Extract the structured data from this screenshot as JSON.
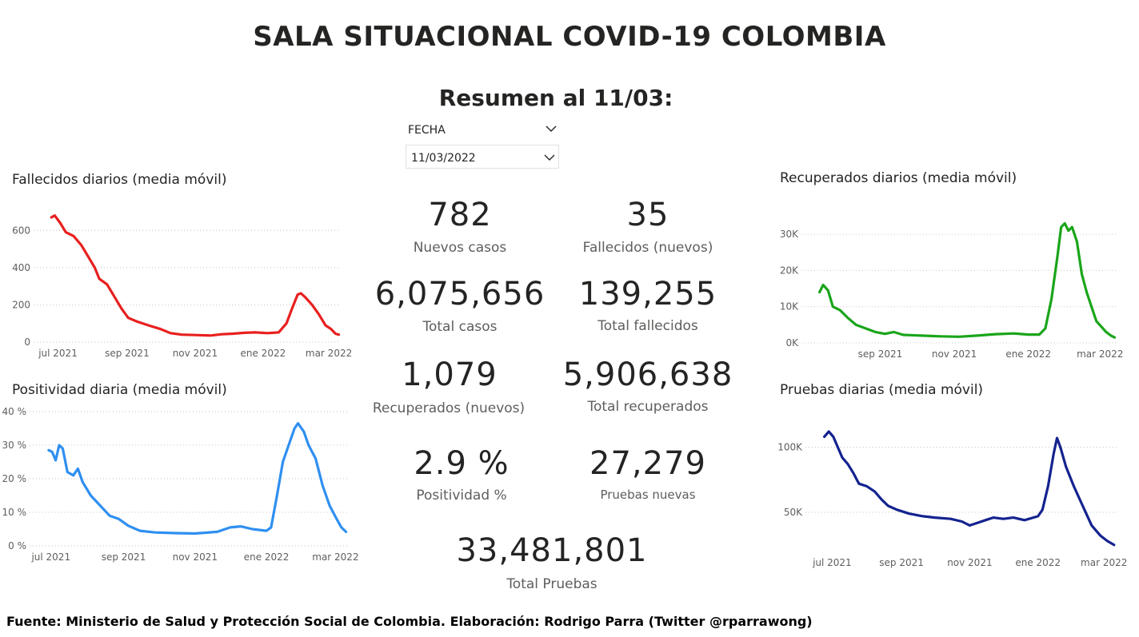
{
  "header": {
    "title": "SALA SITUACIONAL COVID-19 COLOMBIA",
    "subtitle": "Resumen al 11/03:"
  },
  "slicer": {
    "label": "FECHA",
    "value": "11/03/2022"
  },
  "kpis": {
    "nuevos_casos": {
      "value": "782",
      "label": "Nuevos casos"
    },
    "fallecidos_nuevos": {
      "value": "35",
      "label": "Fallecidos (nuevos)"
    },
    "total_casos": {
      "value": "6,075,656",
      "label": "Total casos"
    },
    "total_fallecidos": {
      "value": "139,255",
      "label": "Total fallecidos"
    },
    "recuperados_nuevos": {
      "value": "1,079",
      "label": "Recuperados (nuevos)"
    },
    "total_recuperados": {
      "value": "5,906,638",
      "label": "Total recuperados"
    },
    "positividad": {
      "value": "2.9 %",
      "label": "Positividad %"
    },
    "pruebas_nuevas": {
      "value": "27,279",
      "label": "Pruebas nuevas"
    },
    "total_pruebas": {
      "value": "33,481,801",
      "label": "Total Pruebas"
    }
  },
  "footer": "Fuente: Ministerio de Salud y Protección Social de Colombia. Elaboración: Rodrigo Parra (Twitter @rparrawong)",
  "chart_data": [
    {
      "id": "fallecidos",
      "type": "line",
      "title": "Fallecidos diarios (media móvil)",
      "color": "#e8201f",
      "x_ticks": [
        {
          "date": "2021-07-01",
          "label": "jul 2021"
        },
        {
          "date": "2021-09-01",
          "label": "sep 2021"
        },
        {
          "date": "2021-11-01",
          "label": "nov 2021"
        },
        {
          "date": "2022-01-01",
          "label": "ene 2022"
        },
        {
          "date": "2022-03-01",
          "label": "mar 2022"
        }
      ],
      "y_ticks": [
        {
          "value": 0,
          "label": "0"
        },
        {
          "value": 200,
          "label": "200"
        },
        {
          "value": 400,
          "label": "400"
        },
        {
          "value": 600,
          "label": "600"
        }
      ],
      "ylim": [
        0,
        700
      ],
      "xlim": [
        "2021-06-22",
        "2022-03-11"
      ],
      "series": [
        {
          "values": [
            [
              "2021-06-25",
              670
            ],
            [
              "2021-06-28",
              680
            ],
            [
              "2021-07-03",
              640
            ],
            [
              "2021-07-08",
              590
            ],
            [
              "2021-07-15",
              570
            ],
            [
              "2021-07-22",
              520
            ],
            [
              "2021-07-28",
              460
            ],
            [
              "2021-08-03",
              400
            ],
            [
              "2021-08-07",
              340
            ],
            [
              "2021-08-14",
              310
            ],
            [
              "2021-08-20",
              250
            ],
            [
              "2021-08-27",
              180
            ],
            [
              "2021-09-02",
              130
            ],
            [
              "2021-09-10",
              110
            ],
            [
              "2021-09-20",
              90
            ],
            [
              "2021-10-01",
              70
            ],
            [
              "2021-10-10",
              48
            ],
            [
              "2021-10-20",
              40
            ],
            [
              "2021-11-01",
              38
            ],
            [
              "2021-11-15",
              35
            ],
            [
              "2021-11-25",
              42
            ],
            [
              "2021-12-05",
              45
            ],
            [
              "2021-12-15",
              50
            ],
            [
              "2021-12-25",
              52
            ],
            [
              "2022-01-05",
              48
            ],
            [
              "2022-01-15",
              52
            ],
            [
              "2022-01-22",
              100
            ],
            [
              "2022-01-27",
              180
            ],
            [
              "2022-02-01",
              255
            ],
            [
              "2022-02-04",
              262
            ],
            [
              "2022-02-08",
              240
            ],
            [
              "2022-02-14",
              200
            ],
            [
              "2022-02-20",
              150
            ],
            [
              "2022-02-26",
              90
            ],
            [
              "2022-03-03",
              70
            ],
            [
              "2022-03-07",
              45
            ],
            [
              "2022-03-10",
              40
            ]
          ]
        }
      ]
    },
    {
      "id": "positividad",
      "type": "line",
      "title": "Positividad diaria (media móvil)",
      "color": "#2f8ff0",
      "x_ticks": [
        {
          "date": "2021-07-01",
          "label": "jul 2021"
        },
        {
          "date": "2021-09-01",
          "label": "sep 2021"
        },
        {
          "date": "2021-11-01",
          "label": "nov 2021"
        },
        {
          "date": "2022-01-01",
          "label": "ene 2022"
        },
        {
          "date": "2022-03-01",
          "label": "mar 2022"
        }
      ],
      "y_ticks": [
        {
          "value": 0,
          "label": "0 %"
        },
        {
          "value": 10,
          "label": "10 %"
        },
        {
          "value": 20,
          "label": "20 %"
        },
        {
          "value": 30,
          "label": "30 %"
        },
        {
          "value": 40,
          "label": "40 %"
        }
      ],
      "ylim": [
        0,
        40
      ],
      "xlim": [
        "2021-06-25",
        "2022-03-13"
      ],
      "series": [
        {
          "values": [
            [
              "2021-06-29",
              28.5
            ],
            [
              "2021-07-02",
              28
            ],
            [
              "2021-07-05",
              25.5
            ],
            [
              "2021-07-08",
              30
            ],
            [
              "2021-07-11",
              29
            ],
            [
              "2021-07-15",
              22
            ],
            [
              "2021-07-20",
              21
            ],
            [
              "2021-07-24",
              23
            ],
            [
              "2021-07-28",
              19
            ],
            [
              "2021-08-04",
              15
            ],
            [
              "2021-08-12",
              12
            ],
            [
              "2021-08-20",
              9
            ],
            [
              "2021-08-28",
              8
            ],
            [
              "2021-09-05",
              6
            ],
            [
              "2021-09-15",
              4.5
            ],
            [
              "2021-09-28",
              4
            ],
            [
              "2021-10-15",
              3.8
            ],
            [
              "2021-11-01",
              3.7
            ],
            [
              "2021-11-20",
              4.2
            ],
            [
              "2021-12-01",
              5.5
            ],
            [
              "2021-12-10",
              5.8
            ],
            [
              "2021-12-20",
              5
            ],
            [
              "2022-01-01",
              4.5
            ],
            [
              "2022-01-05",
              5.5
            ],
            [
              "2022-01-10",
              15
            ],
            [
              "2022-01-15",
              25
            ],
            [
              "2022-01-20",
              30
            ],
            [
              "2022-01-25",
              35
            ],
            [
              "2022-01-28",
              36.5
            ],
            [
              "2022-02-02",
              34
            ],
            [
              "2022-02-06",
              30
            ],
            [
              "2022-02-12",
              26
            ],
            [
              "2022-02-18",
              18
            ],
            [
              "2022-02-24",
              12
            ],
            [
              "2022-03-02",
              8
            ],
            [
              "2022-03-06",
              5.5
            ],
            [
              "2022-03-10",
              4.2
            ]
          ]
        }
      ]
    },
    {
      "id": "recuperados",
      "type": "line",
      "title": "Recuperados diarios (media móvil)",
      "color": "#1aa51a",
      "x_ticks": [
        {
          "date": "2021-09-01",
          "label": "sep 2021"
        },
        {
          "date": "2021-11-01",
          "label": "nov 2021"
        },
        {
          "date": "2022-01-01",
          "label": "ene 2022"
        },
        {
          "date": "2022-03-01",
          "label": "mar 2022"
        }
      ],
      "y_ticks": [
        {
          "value": 0,
          "label": "0K"
        },
        {
          "value": 10000,
          "label": "10K"
        },
        {
          "value": 20000,
          "label": "20K"
        },
        {
          "value": 30000,
          "label": "30K"
        }
      ],
      "ylim": [
        0,
        34000
      ],
      "xlim": [
        "2021-07-10",
        "2022-03-14"
      ],
      "series": [
        {
          "values": [
            [
              "2021-07-13",
              14000
            ],
            [
              "2021-07-16",
              16000
            ],
            [
              "2021-07-20",
              14500
            ],
            [
              "2021-07-24",
              10000
            ],
            [
              "2021-07-30",
              9000
            ],
            [
              "2021-08-05",
              7000
            ],
            [
              "2021-08-12",
              5000
            ],
            [
              "2021-08-20",
              4000
            ],
            [
              "2021-08-28",
              3000
            ],
            [
              "2021-09-05",
              2500
            ],
            [
              "2021-09-12",
              3000
            ],
            [
              "2021-09-20",
              2200
            ],
            [
              "2021-10-05",
              2000
            ],
            [
              "2021-10-20",
              1800
            ],
            [
              "2021-11-05",
              1700
            ],
            [
              "2021-11-20",
              2000
            ],
            [
              "2021-12-05",
              2400
            ],
            [
              "2021-12-20",
              2600
            ],
            [
              "2022-01-01",
              2300
            ],
            [
              "2022-01-10",
              2300
            ],
            [
              "2022-01-15",
              4000
            ],
            [
              "2022-01-20",
              12000
            ],
            [
              "2022-01-25",
              24000
            ],
            [
              "2022-01-28",
              32000
            ],
            [
              "2022-01-31",
              33000
            ],
            [
              "2022-02-03",
              31000
            ],
            [
              "2022-02-06",
              32000
            ],
            [
              "2022-02-10",
              28000
            ],
            [
              "2022-02-14",
              19000
            ],
            [
              "2022-02-18",
              14000
            ],
            [
              "2022-02-22",
              10000
            ],
            [
              "2022-02-26",
              6000
            ],
            [
              "2022-03-02",
              4500
            ],
            [
              "2022-03-06",
              3000
            ],
            [
              "2022-03-10",
              2000
            ],
            [
              "2022-03-13",
              1500
            ]
          ]
        }
      ]
    },
    {
      "id": "pruebas",
      "type": "line",
      "title": "Pruebas diarias (media móvil)",
      "color": "#14238f",
      "x_ticks": [
        {
          "date": "2021-07-01",
          "label": "jul 2021"
        },
        {
          "date": "2021-09-01",
          "label": "sep 2021"
        },
        {
          "date": "2021-11-01",
          "label": "nov 2021"
        },
        {
          "date": "2022-01-01",
          "label": "ene 2022"
        },
        {
          "date": "2022-03-01",
          "label": "mar 2022"
        }
      ],
      "y_ticks": [
        {
          "value": 50000,
          "label": "50K"
        },
        {
          "value": 100000,
          "label": "100K"
        }
      ],
      "ylim": [
        20000,
        115000
      ],
      "xlim": [
        "2021-06-20",
        "2022-03-13"
      ],
      "series": [
        {
          "values": [
            [
              "2021-06-24",
              108000
            ],
            [
              "2021-06-28",
              112000
            ],
            [
              "2021-07-02",
              108000
            ],
            [
              "2021-07-06",
              100000
            ],
            [
              "2021-07-10",
              92000
            ],
            [
              "2021-07-15",
              87000
            ],
            [
              "2021-07-20",
              80000
            ],
            [
              "2021-07-25",
              72000
            ],
            [
              "2021-08-01",
              70000
            ],
            [
              "2021-08-08",
              66000
            ],
            [
              "2021-08-14",
              60000
            ],
            [
              "2021-08-20",
              55000
            ],
            [
              "2021-08-28",
              52000
            ],
            [
              "2021-09-08",
              49000
            ],
            [
              "2021-09-20",
              47000
            ],
            [
              "2021-10-01",
              46000
            ],
            [
              "2021-10-15",
              45000
            ],
            [
              "2021-10-25",
              43000
            ],
            [
              "2021-11-01",
              40000
            ],
            [
              "2021-11-08",
              42000
            ],
            [
              "2021-11-15",
              44000
            ],
            [
              "2021-11-22",
              46000
            ],
            [
              "2021-12-01",
              45000
            ],
            [
              "2021-12-10",
              46000
            ],
            [
              "2021-12-20",
              44000
            ],
            [
              "2022-01-01",
              47000
            ],
            [
              "2022-01-05",
              52000
            ],
            [
              "2022-01-10",
              70000
            ],
            [
              "2022-01-15",
              95000
            ],
            [
              "2022-01-18",
              107000
            ],
            [
              "2022-01-21",
              100000
            ],
            [
              "2022-01-26",
              85000
            ],
            [
              "2022-02-02",
              70000
            ],
            [
              "2022-02-10",
              55000
            ],
            [
              "2022-02-18",
              40000
            ],
            [
              "2022-02-26",
              32000
            ],
            [
              "2022-03-04",
              28000
            ],
            [
              "2022-03-10",
              25000
            ]
          ]
        }
      ]
    }
  ]
}
